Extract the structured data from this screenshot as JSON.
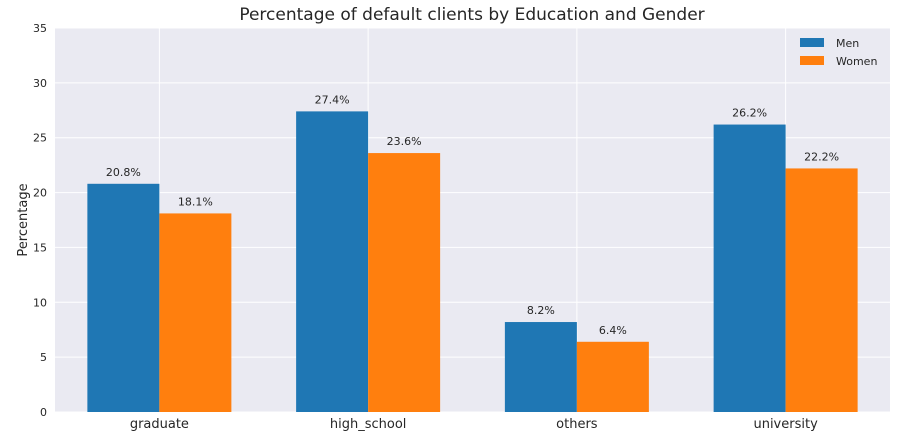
{
  "chart_data": {
    "type": "bar",
    "title": "Percentage of default clients by Education and Gender",
    "xlabel": "",
    "ylabel": "Percentage",
    "categories": [
      "graduate",
      "high_school",
      "others",
      "university"
    ],
    "series": [
      {
        "name": "Men",
        "values": [
          20.8,
          27.4,
          8.2,
          26.2
        ],
        "labels": [
          "20.8%",
          "27.4%",
          "8.2%",
          "26.2%"
        ],
        "color": "#1f77b4"
      },
      {
        "name": "Women",
        "values": [
          18.1,
          23.6,
          6.4,
          22.2
        ],
        "labels": [
          "18.1%",
          "23.6%",
          "6.4%",
          "22.2%"
        ],
        "color": "#ff7f0e"
      }
    ],
    "ylim": [
      0,
      35
    ],
    "yticks": [
      0,
      5,
      10,
      15,
      20,
      25,
      30,
      35
    ],
    "grid": true,
    "legend_position": "top-right",
    "background": "#eaeaf2",
    "grid_color": "#ffffff"
  }
}
